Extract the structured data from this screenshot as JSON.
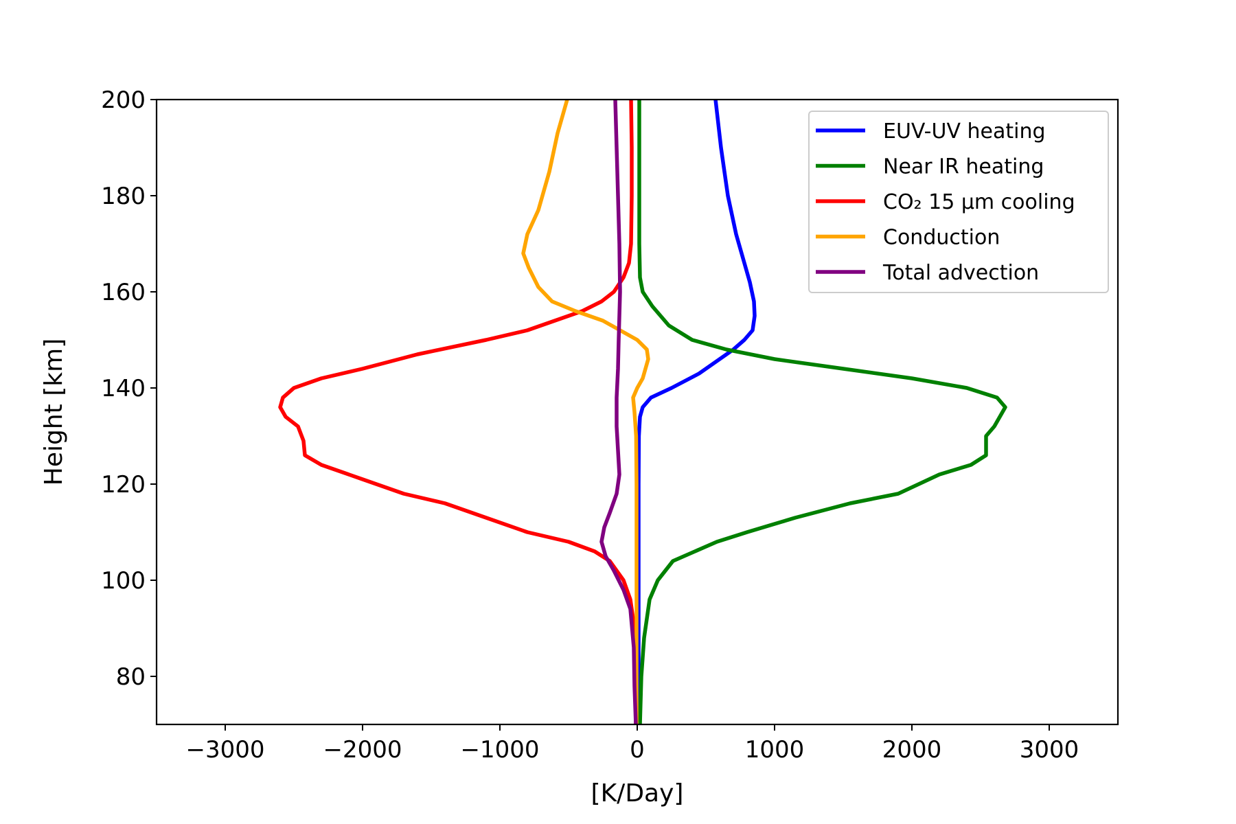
{
  "chart_data": {
    "type": "line",
    "xlabel": "[K/Day]",
    "ylabel": "Height [km]",
    "xlim": [
      -3500,
      3500
    ],
    "ylim": [
      70,
      200
    ],
    "xticks": [
      -3000,
      -2000,
      -1000,
      0,
      1000,
      2000,
      3000
    ],
    "xtick_labels": [
      "−3000",
      "−2000",
      "−1000",
      "0",
      "1000",
      "2000",
      "3000"
    ],
    "yticks": [
      80,
      100,
      120,
      140,
      160,
      180,
      200
    ],
    "ytick_labels": [
      "80",
      "100",
      "120",
      "140",
      "160",
      "180",
      "200"
    ],
    "grid": false,
    "legend_position": "top-right",
    "series": [
      {
        "name": "EUV-UV heating",
        "color": "#0000ff",
        "points": [
          [
            10,
            70
          ],
          [
            10,
            100
          ],
          [
            10,
            120
          ],
          [
            12,
            130
          ],
          [
            20,
            134
          ],
          [
            40,
            136
          ],
          [
            100,
            138
          ],
          [
            250,
            140
          ],
          [
            450,
            143
          ],
          [
            600,
            146
          ],
          [
            700,
            148
          ],
          [
            780,
            150
          ],
          [
            840,
            152
          ],
          [
            855,
            155
          ],
          [
            850,
            158
          ],
          [
            820,
            162
          ],
          [
            770,
            167
          ],
          [
            720,
            172
          ],
          [
            660,
            180
          ],
          [
            610,
            190
          ],
          [
            570,
            200
          ]
        ]
      },
      {
        "name": "Near IR heating",
        "color": "#008000",
        "points": [
          [
            20,
            70
          ],
          [
            30,
            80
          ],
          [
            50,
            88
          ],
          [
            90,
            96
          ],
          [
            150,
            100
          ],
          [
            260,
            104
          ],
          [
            420,
            106
          ],
          [
            580,
            108
          ],
          [
            800,
            110
          ],
          [
            1150,
            113
          ],
          [
            1550,
            116
          ],
          [
            1900,
            118
          ],
          [
            2200,
            122
          ],
          [
            2430,
            124
          ],
          [
            2540,
            126
          ],
          [
            2540,
            130
          ],
          [
            2600,
            132
          ],
          [
            2680,
            136
          ],
          [
            2620,
            138
          ],
          [
            2400,
            140
          ],
          [
            2000,
            142
          ],
          [
            1500,
            144
          ],
          [
            1000,
            146
          ],
          [
            650,
            148
          ],
          [
            400,
            150
          ],
          [
            230,
            153
          ],
          [
            110,
            157
          ],
          [
            40,
            160
          ],
          [
            20,
            163
          ],
          [
            15,
            170
          ],
          [
            15,
            200
          ]
        ]
      },
      {
        "name": "CO₂ 15 μm cooling",
        "color": "#ff0000",
        "points": [
          [
            -10,
            70
          ],
          [
            -20,
            90
          ],
          [
            -50,
            96
          ],
          [
            -100,
            100
          ],
          [
            -200,
            104
          ],
          [
            -310,
            106
          ],
          [
            -500,
            108
          ],
          [
            -800,
            110
          ],
          [
            -1100,
            113
          ],
          [
            -1400,
            116
          ],
          [
            -1700,
            118
          ],
          [
            -2000,
            121
          ],
          [
            -2300,
            124
          ],
          [
            -2420,
            126
          ],
          [
            -2430,
            129
          ],
          [
            -2470,
            132
          ],
          [
            -2560,
            134
          ],
          [
            -2600,
            136
          ],
          [
            -2580,
            138
          ],
          [
            -2500,
            140
          ],
          [
            -2300,
            142
          ],
          [
            -2000,
            144
          ],
          [
            -1600,
            147
          ],
          [
            -1100,
            150
          ],
          [
            -800,
            152
          ],
          [
            -600,
            154
          ],
          [
            -400,
            156
          ],
          [
            -260,
            158
          ],
          [
            -170,
            160
          ],
          [
            -100,
            163
          ],
          [
            -60,
            166
          ],
          [
            -45,
            170
          ],
          [
            -40,
            180
          ],
          [
            -40,
            190
          ],
          [
            -45,
            200
          ]
        ]
      },
      {
        "name": "Conduction",
        "color": "#ffa500",
        "points": [
          [
            -5,
            70
          ],
          [
            -5,
            100
          ],
          [
            -5,
            120
          ],
          [
            -8,
            130
          ],
          [
            -20,
            135
          ],
          [
            -30,
            138
          ],
          [
            0,
            140
          ],
          [
            40,
            142
          ],
          [
            80,
            146
          ],
          [
            70,
            148
          ],
          [
            0,
            150
          ],
          [
            -250,
            154
          ],
          [
            -450,
            156
          ],
          [
            -620,
            158
          ],
          [
            -720,
            161
          ],
          [
            -790,
            165
          ],
          [
            -830,
            168
          ],
          [
            -800,
            172
          ],
          [
            -720,
            177
          ],
          [
            -640,
            185
          ],
          [
            -580,
            193
          ],
          [
            -510,
            200
          ]
        ]
      },
      {
        "name": "Total advection",
        "color": "#800080",
        "points": [
          [
            -10,
            70
          ],
          [
            -20,
            78
          ],
          [
            -25,
            86
          ],
          [
            -50,
            94
          ],
          [
            -100,
            98
          ],
          [
            -170,
            102
          ],
          [
            -230,
            105
          ],
          [
            -260,
            108
          ],
          [
            -240,
            111
          ],
          [
            -200,
            114
          ],
          [
            -150,
            118
          ],
          [
            -130,
            122
          ],
          [
            -140,
            127
          ],
          [
            -150,
            132
          ],
          [
            -150,
            138
          ],
          [
            -140,
            144
          ],
          [
            -135,
            150
          ],
          [
            -130,
            155
          ],
          [
            -125,
            160
          ],
          [
            -130,
            170
          ],
          [
            -140,
            180
          ],
          [
            -150,
            190
          ],
          [
            -160,
            200
          ]
        ]
      }
    ]
  }
}
